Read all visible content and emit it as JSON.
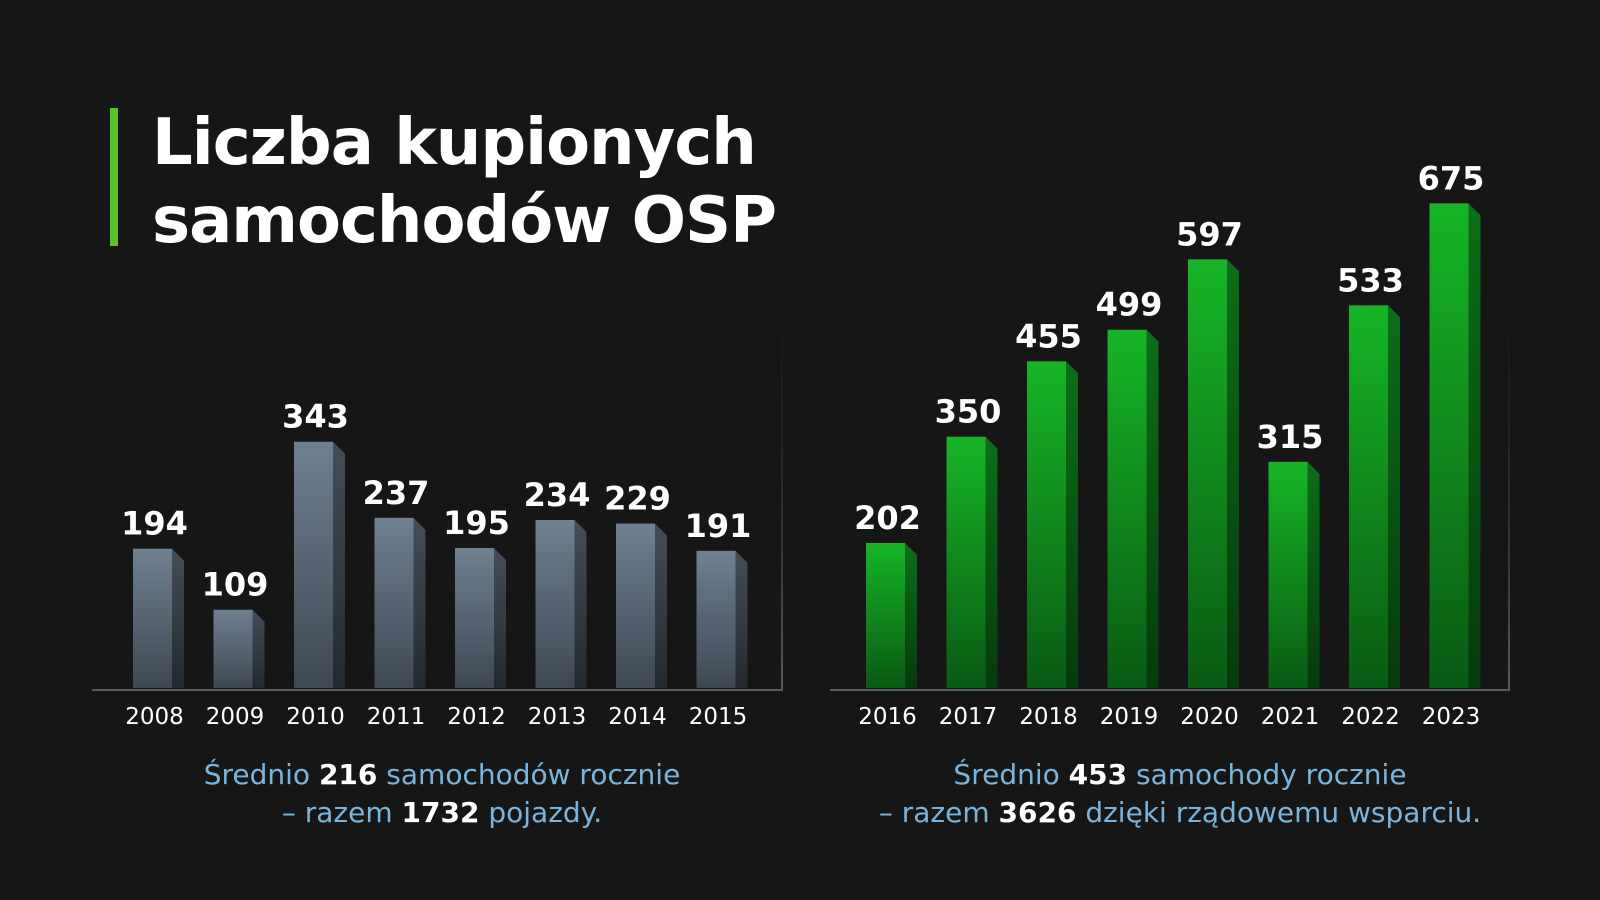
{
  "page": {
    "title_line1": "Liczba kupionych",
    "title_line2": "samochodów OSP"
  },
  "captions": {
    "left": {
      "line1_a": "Średnio ",
      "line1_b": "216",
      "line1_c": " samochodów rocznie",
      "line2_a": "– razem ",
      "line2_b": "1732",
      "line2_c": " pojazdy."
    },
    "right": {
      "line1_a": "Średnio ",
      "line1_b": "453",
      "line1_c": " samochody rocznie",
      "line2_a": "– razem ",
      "line2_b": "3626",
      "line2_c": " dzięki rządowemu wsparciu."
    }
  },
  "colors": {
    "accent": "#5cc22a",
    "left_bar": "#6f8091",
    "right_bar": "#14b024",
    "caption_text": "#7ab4dc",
    "background": "#161616"
  },
  "chart_data": [
    {
      "type": "bar",
      "categories": [
        "2008",
        "2009",
        "2010",
        "2011",
        "2012",
        "2013",
        "2014",
        "2015"
      ],
      "values": [
        194,
        109,
        343,
        237,
        195,
        234,
        229,
        191
      ],
      "ylim": [
        0,
        700
      ],
      "grid": false,
      "data_labels": true
    },
    {
      "type": "bar",
      "categories": [
        "2016",
        "2017",
        "2018",
        "2019",
        "2020",
        "2021",
        "2022",
        "2023"
      ],
      "values": [
        202,
        350,
        455,
        499,
        597,
        315,
        533,
        675
      ],
      "ylim": [
        0,
        700
      ],
      "grid": false,
      "data_labels": true
    }
  ]
}
